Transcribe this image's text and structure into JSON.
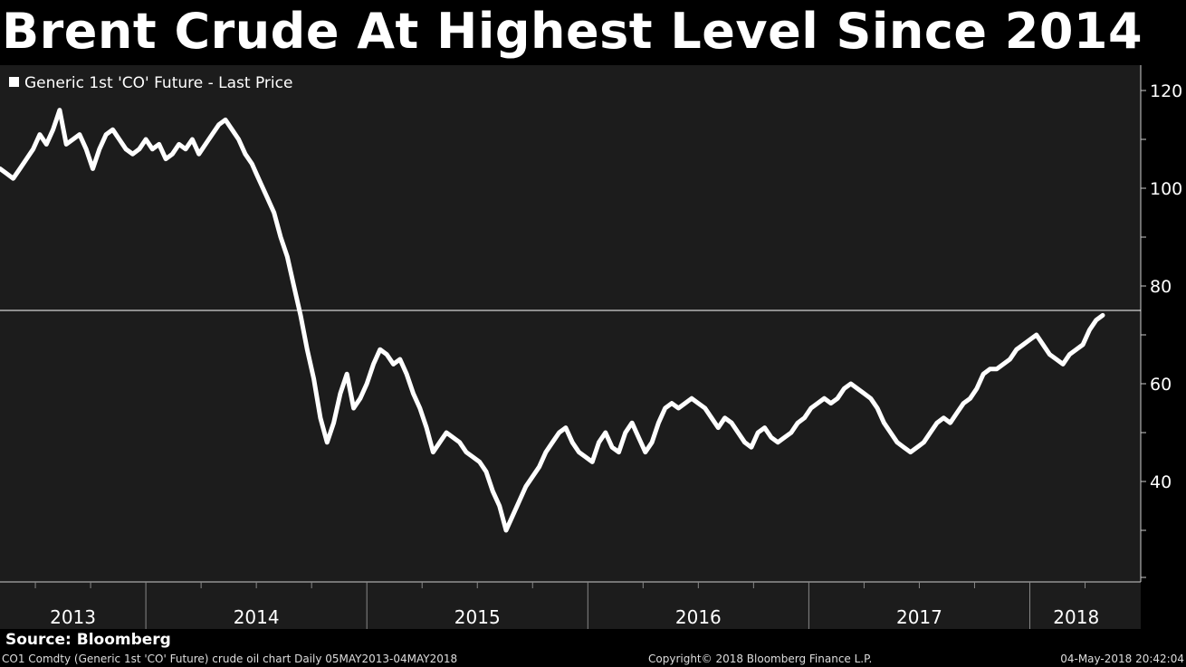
{
  "title": "Brent Crude At Highest Level Since 2014",
  "source": "Source: Bloomberg",
  "footer": {
    "left": "CO1 Comdty (Generic 1st 'CO' Future) crude oil chart  Daily 05MAY2013-04MAY2018",
    "center": "Copyright© 2018 Bloomberg Finance L.P.",
    "right": "04-May-2018 20:42:04"
  },
  "colors": {
    "background": "#000000",
    "plot_background": "#1c1c1c",
    "line": "#ffffff",
    "text": "#ffffff"
  },
  "chart_data": {
    "type": "line",
    "legend": {
      "label": "Generic 1st 'CO' Future - Last Price",
      "position": "top-left"
    },
    "ylim": [
      20,
      125
    ],
    "y_ticks": [
      40,
      60,
      80,
      100,
      120
    ],
    "xlim": [
      2013.34,
      2018.42
    ],
    "x_tick_labels": [
      "2013",
      "2014",
      "2015",
      "2016",
      "2017",
      "2018"
    ],
    "reference_line": 75,
    "series": [
      {
        "x": [
          2013.34,
          2013.37,
          2013.4,
          2013.43,
          2013.46,
          2013.49,
          2013.52,
          2013.55,
          2013.58,
          2013.61,
          2013.64,
          2013.67,
          2013.7,
          2013.73,
          2013.76,
          2013.79,
          2013.82,
          2013.85,
          2013.88,
          2013.91,
          2013.94,
          2013.97,
          2014.0,
          2014.03,
          2014.06,
          2014.09,
          2014.12,
          2014.15,
          2014.18,
          2014.21,
          2014.24,
          2014.27,
          2014.3,
          2014.33,
          2014.36,
          2014.39,
          2014.42,
          2014.45,
          2014.48,
          2014.5,
          2014.52,
          2014.55,
          2014.58,
          2014.61,
          2014.64,
          2014.67,
          2014.7,
          2014.73,
          2014.76,
          2014.79,
          2014.82,
          2014.85,
          2014.88,
          2014.91,
          2014.94,
          2014.97,
          2015.0,
          2015.03,
          2015.06,
          2015.09,
          2015.12,
          2015.15,
          2015.18,
          2015.21,
          2015.24,
          2015.27,
          2015.3,
          2015.33,
          2015.36,
          2015.39,
          2015.42,
          2015.45,
          2015.48,
          2015.51,
          2015.54,
          2015.57,
          2015.6,
          2015.63,
          2015.66,
          2015.69,
          2015.72,
          2015.75,
          2015.78,
          2015.81,
          2015.84,
          2015.87,
          2015.9,
          2015.93,
          2015.96,
          2015.99,
          2016.02,
          2016.05,
          2016.08,
          2016.11,
          2016.14,
          2016.17,
          2016.2,
          2016.23,
          2016.26,
          2016.29,
          2016.32,
          2016.35,
          2016.38,
          2016.41,
          2016.44,
          2016.47,
          2016.5,
          2016.53,
          2016.56,
          2016.59,
          2016.62,
          2016.65,
          2016.68,
          2016.71,
          2016.74,
          2016.77,
          2016.8,
          2016.83,
          2016.86,
          2016.89,
          2016.92,
          2016.95,
          2016.98,
          2017.01,
          2017.04,
          2017.07,
          2017.1,
          2017.13,
          2017.16,
          2017.19,
          2017.22,
          2017.25,
          2017.28,
          2017.31,
          2017.34,
          2017.37,
          2017.4,
          2017.43,
          2017.46,
          2017.49,
          2017.52,
          2017.55,
          2017.58,
          2017.61,
          2017.64,
          2017.67,
          2017.7,
          2017.73,
          2017.76,
          2017.79,
          2017.82,
          2017.85,
          2017.88,
          2017.91,
          2017.94,
          2017.97,
          2018.0,
          2018.03,
          2018.06,
          2018.09,
          2018.12,
          2018.15,
          2018.18,
          2018.21,
          2018.24,
          2018.27,
          2018.3,
          2018.33
        ],
        "y": [
          104,
          103,
          102,
          104,
          106,
          108,
          111,
          109,
          112,
          116,
          109,
          110,
          111,
          108,
          104,
          108,
          111,
          112,
          110,
          108,
          107,
          108,
          110,
          108,
          109,
          106,
          107,
          109,
          108,
          110,
          107,
          109,
          111,
          113,
          114,
          112,
          110,
          107,
          105,
          103,
          101,
          98,
          95,
          90,
          86,
          80,
          74,
          67,
          61,
          53,
          48,
          52,
          58,
          62,
          55,
          57,
          60,
          64,
          67,
          66,
          64,
          65,
          62,
          58,
          55,
          51,
          46,
          48,
          50,
          49,
          48,
          46,
          45,
          44,
          42,
          38,
          35,
          30,
          33,
          36,
          39,
          41,
          43,
          46,
          48,
          50,
          51,
          48,
          46,
          45,
          44,
          48,
          50,
          47,
          46,
          50,
          52,
          49,
          46,
          48,
          52,
          55,
          56,
          55,
          56,
          57,
          56,
          55,
          53,
          51,
          53,
          52,
          50,
          48,
          47,
          50,
          51,
          49,
          48,
          49,
          50,
          52,
          53,
          55,
          56,
          57,
          56,
          57,
          59,
          60,
          59,
          58,
          57,
          55,
          52,
          50,
          48,
          47,
          46,
          47,
          48,
          50,
          52,
          53,
          52,
          54,
          56,
          57,
          59,
          62,
          63,
          63,
          64,
          65,
          67,
          68,
          69,
          70,
          68,
          66,
          65,
          64,
          66,
          67,
          68,
          71,
          73,
          74
        ],
        "values": [
          104,
          103,
          102,
          104,
          106,
          108,
          111,
          109,
          112,
          116,
          109,
          110,
          111,
          108,
          104,
          108,
          111,
          112,
          110,
          108,
          107,
          108,
          110,
          108,
          109,
          106,
          107,
          109,
          108,
          110,
          107,
          109,
          111,
          113,
          114,
          112,
          110,
          107,
          105,
          103,
          101,
          98,
          95,
          90,
          86,
          80,
          74,
          67,
          61,
          53,
          48,
          52,
          58,
          62,
          55,
          57,
          60,
          64,
          67,
          66,
          64,
          65,
          62,
          58,
          55,
          51,
          46,
          48,
          50,
          49,
          48,
          46,
          45,
          44,
          42,
          38,
          35,
          30,
          33,
          36,
          39,
          41,
          43,
          46,
          48,
          50,
          51,
          48,
          46,
          45,
          44,
          48,
          50,
          47,
          46,
          50,
          52,
          49,
          46,
          48,
          52,
          55,
          56,
          55,
          56,
          57,
          56,
          55,
          53,
          51,
          53,
          52,
          50,
          48,
          47,
          50,
          51,
          49,
          48,
          49,
          50,
          52,
          53,
          55,
          56,
          57,
          56,
          57,
          59,
          60,
          59,
          58,
          57,
          55,
          52,
          50,
          48,
          47,
          46,
          47,
          48,
          50,
          52,
          53,
          52,
          54,
          56,
          57,
          59,
          62,
          63,
          63,
          64,
          65,
          67,
          68,
          69,
          70,
          68,
          66,
          65,
          64,
          66,
          67,
          68,
          71,
          73,
          74
        ]
      }
    ]
  }
}
